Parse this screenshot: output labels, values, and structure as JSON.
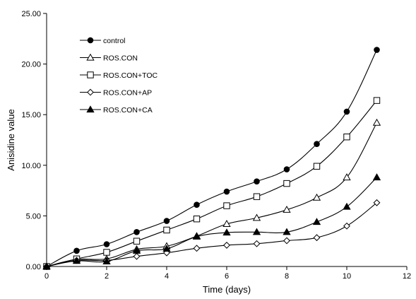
{
  "chart_data": {
    "type": "line",
    "title": "",
    "xlabel": "Time (days)",
    "ylabel": "Anisidine value",
    "xlim": [
      0,
      12
    ],
    "ylim": [
      0,
      25
    ],
    "xticks": [
      0,
      2,
      4,
      6,
      8,
      10,
      12
    ],
    "xtick_labels": [
      "0",
      "2",
      "4",
      "6",
      "8",
      "10",
      "12"
    ],
    "yticks": [
      0,
      5,
      10,
      15,
      20,
      25
    ],
    "ytick_labels": [
      "0.00",
      "5.00",
      "10.00",
      "15.00",
      "20.00",
      "25.00"
    ],
    "grid": false,
    "legend_position": "top-left",
    "x": [
      0,
      1,
      2,
      3,
      4,
      5,
      6,
      7,
      8,
      9,
      10,
      11
    ],
    "series": [
      {
        "name": "control",
        "marker": "filled-circle",
        "values": [
          0.0,
          1.55,
          2.2,
          3.4,
          4.5,
          6.1,
          7.4,
          8.4,
          9.6,
          12.1,
          15.3,
          21.4
        ]
      },
      {
        "name": "ROS.CON",
        "marker": "open-triangle",
        "values": [
          0.0,
          0.7,
          0.75,
          1.7,
          2.0,
          3.0,
          4.2,
          4.8,
          5.6,
          6.8,
          8.8,
          14.2
        ]
      },
      {
        "name": "ROS.CON+TOC",
        "marker": "open-square",
        "values": [
          0.0,
          0.75,
          1.4,
          2.5,
          3.6,
          4.7,
          6.0,
          6.9,
          8.2,
          9.9,
          12.8,
          16.4
        ]
      },
      {
        "name": "ROS.CON+AP",
        "marker": "open-diamond",
        "values": [
          0.0,
          0.6,
          0.6,
          1.0,
          1.35,
          1.8,
          2.1,
          2.25,
          2.55,
          2.85,
          4.0,
          6.3
        ]
      },
      {
        "name": "ROS.CON+CA",
        "marker": "filled-triangle",
        "values": [
          0.0,
          0.55,
          0.5,
          1.55,
          1.75,
          2.95,
          3.35,
          3.4,
          3.4,
          4.4,
          5.9,
          8.8
        ]
      }
    ],
    "colors": {
      "line": "#000000",
      "background": "#ffffff"
    }
  }
}
